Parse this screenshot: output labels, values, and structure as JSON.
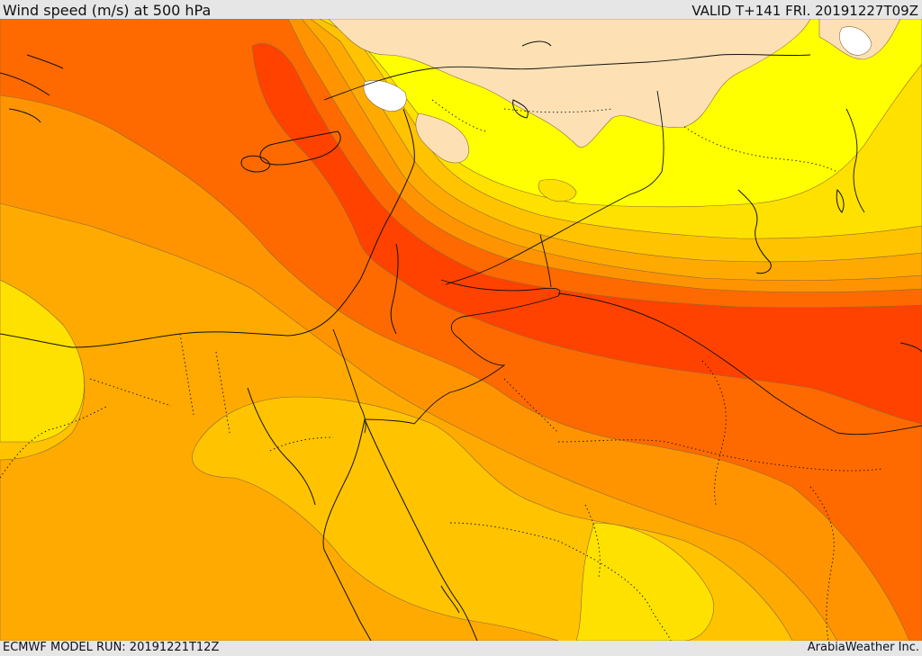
{
  "header": {
    "title": "Wind speed (m/s) at 500 hPa",
    "valid": "VALID T+141 FRI. 20191227T09Z"
  },
  "footer": {
    "model_run": "ECMWF MODEL RUN: 20191221T12Z",
    "brand": "ArabiaWeather Inc."
  },
  "map": {
    "variable": "wind speed",
    "level": "500 hPa",
    "colors": {
      "very_light": "#fde1b4",
      "light": "#ffff00",
      "yellow": "#ffe100",
      "gold": "#ffc300",
      "amber": "#ffaa00",
      "orange": "#ff9400",
      "dark_orange": "#ff6a00",
      "red_orange": "#ff4200",
      "none": "#ffffff"
    }
  }
}
